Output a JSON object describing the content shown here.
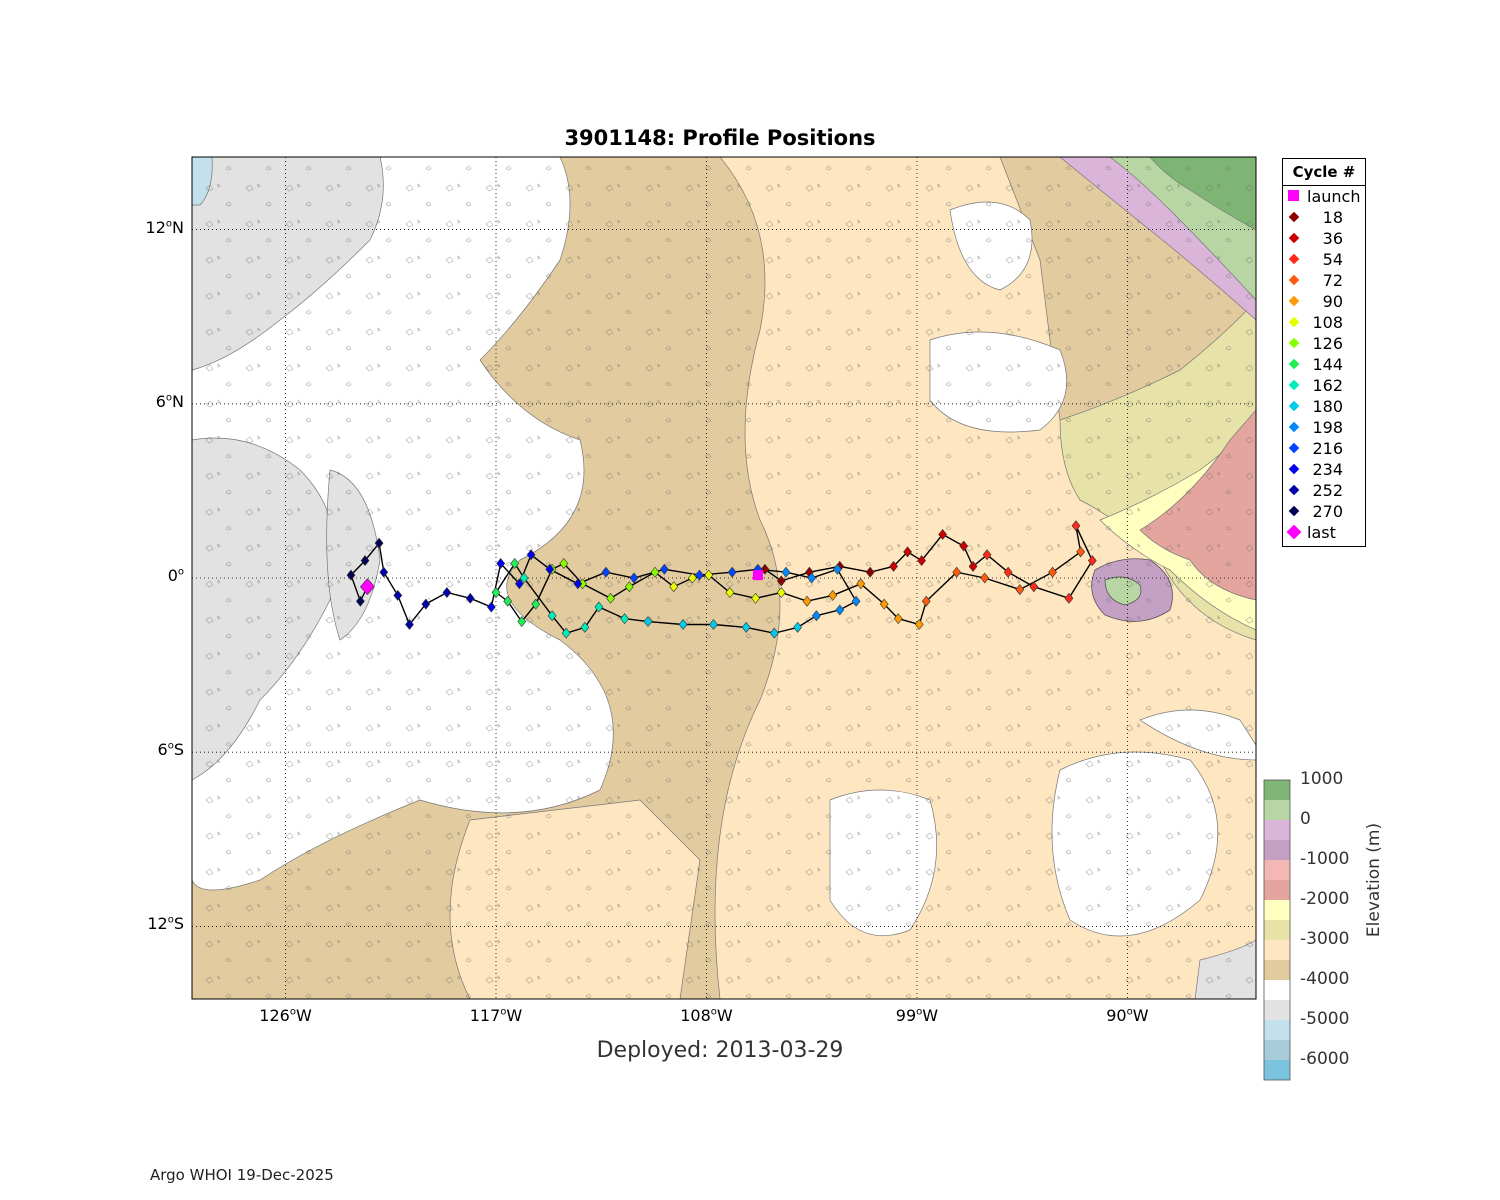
{
  "title": "3901148: Profile Positions",
  "deployed_text": "Deployed: 2013-03-29",
  "credit": "Argo WHOI 19-Dec-2025",
  "axes": {
    "lon_range": [
      -130,
      -84.5
    ],
    "lat_range": [
      -14.5,
      14.5
    ],
    "x_ticks": [
      {
        "deg": "126",
        "hemi": "W",
        "value": -126
      },
      {
        "deg": "117",
        "hemi": "W",
        "value": -117
      },
      {
        "deg": "108",
        "hemi": "W",
        "value": -108
      },
      {
        "deg": "99",
        "hemi": "W",
        "value": -99
      },
      {
        "deg": "90",
        "hemi": "W",
        "value": -90
      }
    ],
    "y_ticks": [
      {
        "deg": "12",
        "hemi": "N",
        "value": 12
      },
      {
        "deg": "6",
        "hemi": "N",
        "value": 6
      },
      {
        "deg": "0",
        "hemi": "",
        "value": 0
      },
      {
        "deg": "6",
        "hemi": "S",
        "value": -6
      },
      {
        "deg": "12",
        "hemi": "S",
        "value": -12
      }
    ],
    "grid": "dotted"
  },
  "legend": {
    "title": "Cycle #",
    "items": [
      {
        "label": "launch",
        "color": "#ff00ff",
        "shape": "square"
      },
      {
        "label": "18",
        "color": "#8b0000",
        "shape": "diamond"
      },
      {
        "label": "36",
        "color": "#cc0000",
        "shape": "diamond"
      },
      {
        "label": "54",
        "color": "#ff2a1a",
        "shape": "diamond"
      },
      {
        "label": "72",
        "color": "#ff5a10",
        "shape": "diamond"
      },
      {
        "label": "90",
        "color": "#ff9a00",
        "shape": "diamond"
      },
      {
        "label": "108",
        "color": "#e8ff00",
        "shape": "diamond"
      },
      {
        "label": "126",
        "color": "#88ff00",
        "shape": "diamond"
      },
      {
        "label": "144",
        "color": "#22ee55",
        "shape": "diamond"
      },
      {
        "label": "162",
        "color": "#00eebb",
        "shape": "diamond"
      },
      {
        "label": "180",
        "color": "#00ccee",
        "shape": "diamond"
      },
      {
        "label": "198",
        "color": "#0088ff",
        "shape": "diamond"
      },
      {
        "label": "216",
        "color": "#0044ff",
        "shape": "diamond"
      },
      {
        "label": "234",
        "color": "#0000ee",
        "shape": "diamond"
      },
      {
        "label": "252",
        "color": "#0000aa",
        "shape": "diamond"
      },
      {
        "label": "270",
        "color": "#000055",
        "shape": "diamond"
      },
      {
        "label": "last",
        "color": "#ff00ff",
        "shape": "diamond"
      }
    ]
  },
  "colorbar": {
    "label": "Elevation (m)",
    "ticks": [
      "1000",
      "0",
      "-1000",
      "-2000",
      "-3000",
      "-4000",
      "-5000",
      "-6000"
    ],
    "colors": [
      "#7fb574",
      "#b7d6a3",
      "#dab4d9",
      "#c4a0c4",
      "#f3b8b3",
      "#e4a59f",
      "#ffffc0",
      "#e7e3a8",
      "#fde6c0",
      "#e3cba0",
      "#ffffff",
      "#e2e2e2",
      "#c2e1ec",
      "#a6ccda",
      "#7bc4df"
    ]
  },
  "chart_data": {
    "type": "scatter",
    "title": "3901148: Profile Positions",
    "x_range": [
      -130,
      -84.5
    ],
    "y_range": [
      -14.5,
      14.5
    ],
    "launch": {
      "lon": -105.8,
      "lat": 0.1
    },
    "last": {
      "lon": -122.5,
      "lat": -0.3
    },
    "track": [
      [
        -105.8,
        0.1
      ],
      [
        -105.5,
        0.3
      ],
      [
        -104.8,
        -0.1
      ],
      [
        -103.6,
        0.2
      ],
      [
        -102.3,
        0.4
      ],
      [
        -101.0,
        0.2
      ],
      [
        -100.0,
        0.4
      ],
      [
        -99.4,
        0.9
      ],
      [
        -98.8,
        0.6
      ],
      [
        -97.9,
        1.5
      ],
      [
        -97.0,
        1.1
      ],
      [
        -96.6,
        0.4
      ],
      [
        -96.0,
        0.8
      ],
      [
        -95.1,
        0.2
      ],
      [
        -94.0,
        -0.3
      ],
      [
        -92.5,
        -0.7
      ],
      [
        -91.5,
        0.6
      ],
      [
        -92.2,
        1.8
      ],
      [
        -92.0,
        0.9
      ],
      [
        -93.2,
        0.2
      ],
      [
        -94.6,
        -0.4
      ],
      [
        -96.1,
        0.0
      ],
      [
        -97.3,
        0.2
      ],
      [
        -98.6,
        -0.8
      ],
      [
        -98.9,
        -1.6
      ],
      [
        -99.8,
        -1.4
      ],
      [
        -100.4,
        -0.9
      ],
      [
        -101.4,
        -0.2
      ],
      [
        -102.6,
        -0.6
      ],
      [
        -103.7,
        -0.8
      ],
      [
        -104.8,
        -0.5
      ],
      [
        -105.9,
        -0.7
      ],
      [
        -107.0,
        -0.5
      ],
      [
        -107.9,
        0.1
      ],
      [
        -108.6,
        0.0
      ],
      [
        -109.4,
        -0.3
      ],
      [
        -110.2,
        0.2
      ],
      [
        -111.3,
        -0.3
      ],
      [
        -112.1,
        -0.7
      ],
      [
        -113.3,
        -0.2
      ],
      [
        -114.1,
        0.5
      ],
      [
        -114.6,
        0.3
      ],
      [
        -115.3,
        -0.9
      ],
      [
        -115.9,
        -1.5
      ],
      [
        -116.5,
        -0.8
      ],
      [
        -117.0,
        -0.5
      ],
      [
        -116.2,
        0.5
      ],
      [
        -115.8,
        0.0
      ],
      [
        -114.6,
        -1.3
      ],
      [
        -114.0,
        -1.9
      ],
      [
        -113.2,
        -1.7
      ],
      [
        -112.6,
        -1.0
      ],
      [
        -111.5,
        -1.4
      ],
      [
        -110.5,
        -1.5
      ],
      [
        -109.0,
        -1.6
      ],
      [
        -107.7,
        -1.6
      ],
      [
        -106.3,
        -1.7
      ],
      [
        -105.1,
        -1.9
      ],
      [
        -104.1,
        -1.7
      ],
      [
        -103.3,
        -1.3
      ],
      [
        -102.3,
        -1.1
      ],
      [
        -101.6,
        -0.8
      ],
      [
        -102.4,
        0.3
      ],
      [
        -103.5,
        0.0
      ],
      [
        -104.6,
        0.2
      ],
      [
        -105.8,
        0.3
      ],
      [
        -106.9,
        0.2
      ],
      [
        -108.3,
        0.1
      ],
      [
        -109.8,
        0.3
      ],
      [
        -111.1,
        0.0
      ],
      [
        -112.3,
        0.2
      ],
      [
        -113.5,
        -0.2
      ],
      [
        -114.7,
        0.3
      ],
      [
        -115.5,
        0.8
      ],
      [
        -116.0,
        -0.2
      ],
      [
        -116.8,
        0.5
      ],
      [
        -117.2,
        -1.0
      ],
      [
        -118.1,
        -0.7
      ],
      [
        -119.1,
        -0.5
      ],
      [
        -120.0,
        -0.9
      ],
      [
        -120.7,
        -1.6
      ],
      [
        -121.2,
        -0.6
      ],
      [
        -121.8,
        0.2
      ],
      [
        -122.0,
        1.2
      ],
      [
        -122.6,
        0.6
      ],
      [
        -123.2,
        0.1
      ],
      [
        -122.8,
        -0.8
      ],
      [
        -122.5,
        -0.3
      ]
    ]
  }
}
